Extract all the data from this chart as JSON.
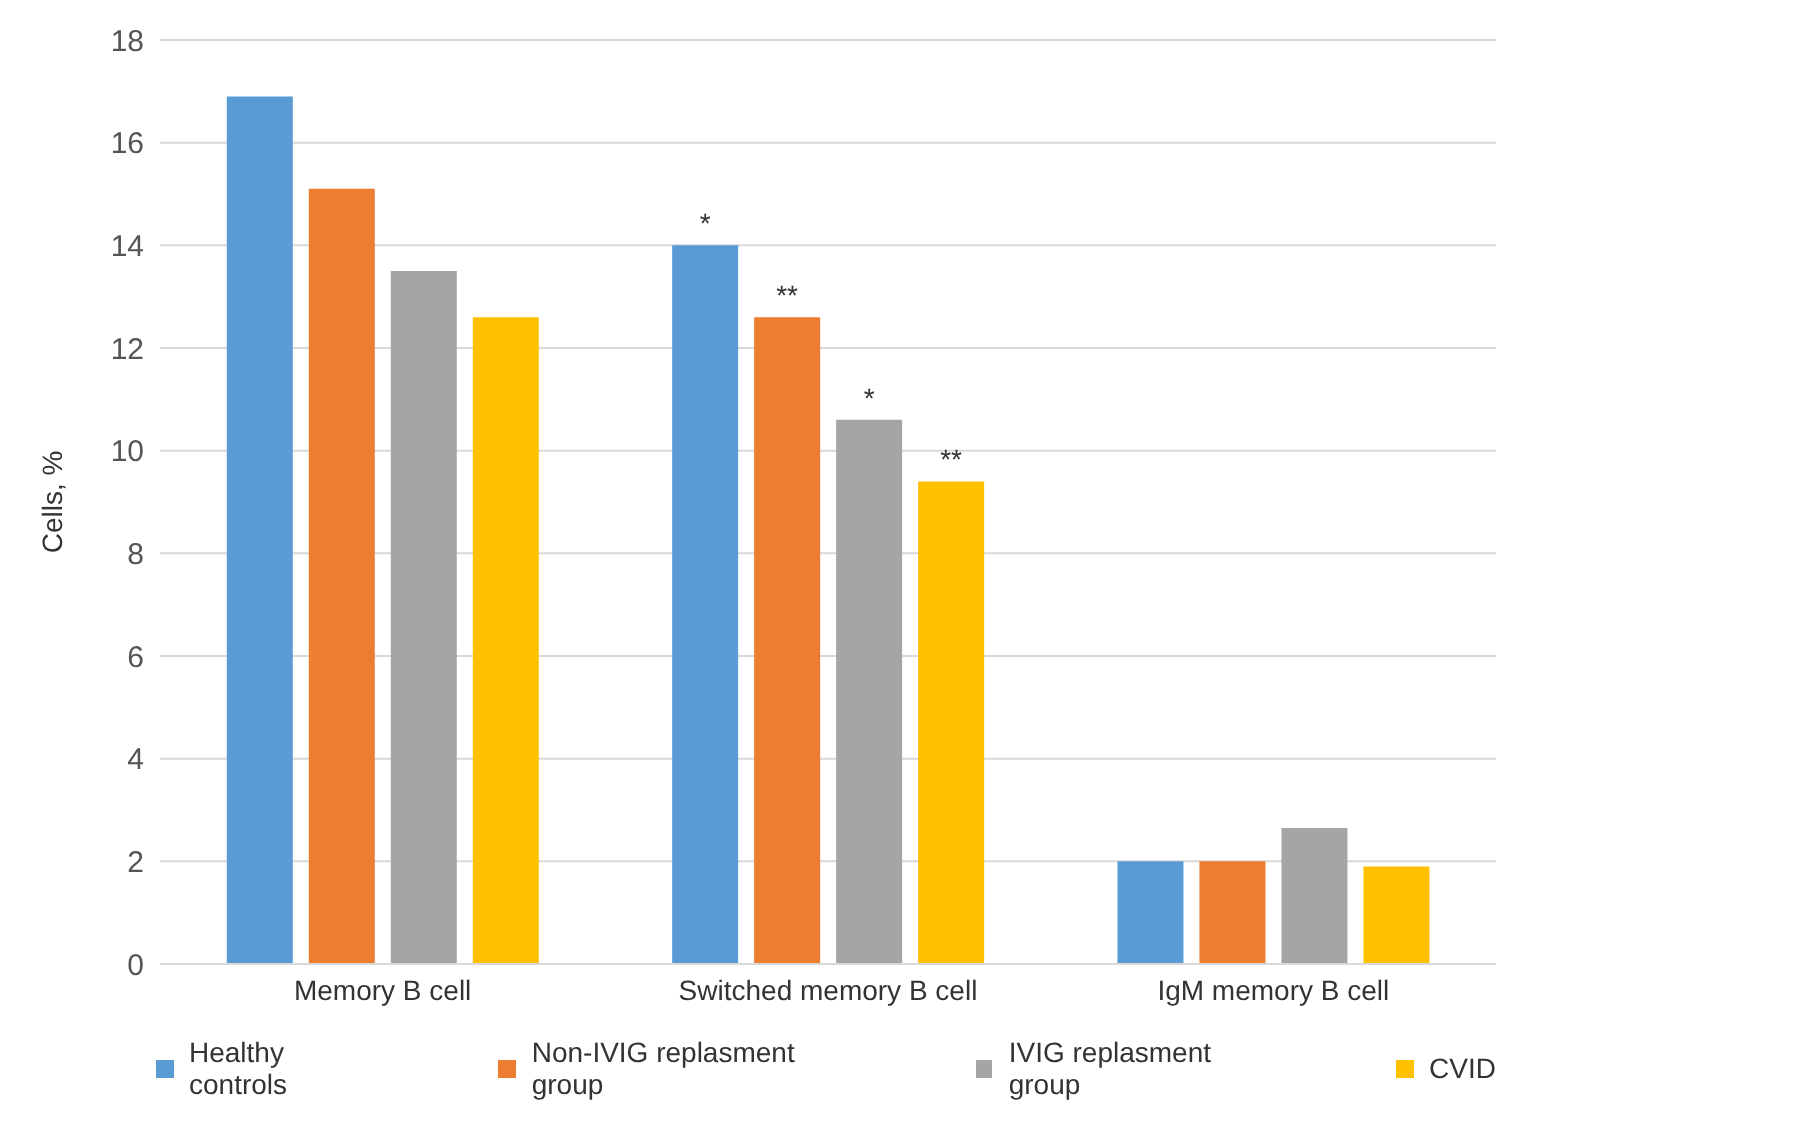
{
  "chart_data": {
    "type": "bar",
    "ylabel": "Cells, %",
    "categories": [
      "Memory B cell",
      "Switched memory B cell",
      "IgM memory B cell"
    ],
    "series": [
      {
        "name": "Healthy controls",
        "color": "#5b9bd5",
        "values": [
          16.9,
          14.0,
          2.0
        ],
        "value_labels": [
          null,
          "*",
          null
        ]
      },
      {
        "name": "Non-IVIG replasment group",
        "color": "#ed7d31",
        "values": [
          15.1,
          12.6,
          2.0
        ],
        "value_labels": [
          null,
          "**",
          null
        ]
      },
      {
        "name": "IVIG replasment group",
        "color": "#a5a5a5",
        "values": [
          13.5,
          10.6,
          2.65
        ],
        "value_labels": [
          null,
          "*",
          null
        ]
      },
      {
        "name": "CVID",
        "color": "#ffc000",
        "values": [
          12.6,
          9.4,
          1.9
        ],
        "value_labels": [
          null,
          "**",
          null
        ]
      }
    ],
    "ylim": [
      0,
      18
    ],
    "yticks": [
      0,
      2,
      4,
      6,
      8,
      10,
      12,
      14,
      16,
      18
    ],
    "grid": "y",
    "legend": "bottom"
  }
}
